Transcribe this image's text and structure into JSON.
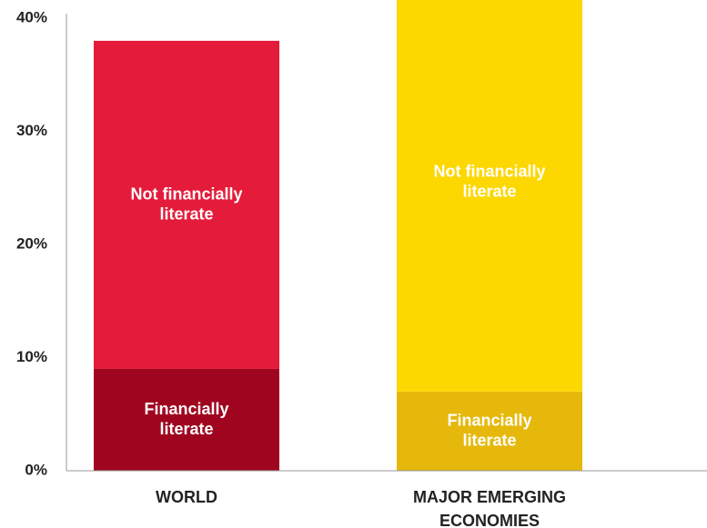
{
  "chart_data": {
    "type": "stacked_bar",
    "categories": [
      "WORLD",
      "MAJOR EMERGING ECONOMIES"
    ],
    "series": [
      {
        "name": "Financially literate",
        "values": [
          9,
          7
        ],
        "colors": [
          "#a0051f",
          "#e5b80b"
        ]
      },
      {
        "name": "Not financially literate",
        "values": [
          29,
          37
        ],
        "colors": [
          "#e41b3a",
          "#fdd700"
        ]
      }
    ],
    "ylim": [
      0,
      40
    ],
    "yticks": [
      {
        "value": 0,
        "label": "0%"
      },
      {
        "value": 10,
        "label": "10%"
      },
      {
        "value": 20,
        "label": "20%"
      },
      {
        "value": 30,
        "label": "30%"
      },
      {
        "value": 40,
        "label": "40%"
      }
    ],
    "grid": false
  }
}
